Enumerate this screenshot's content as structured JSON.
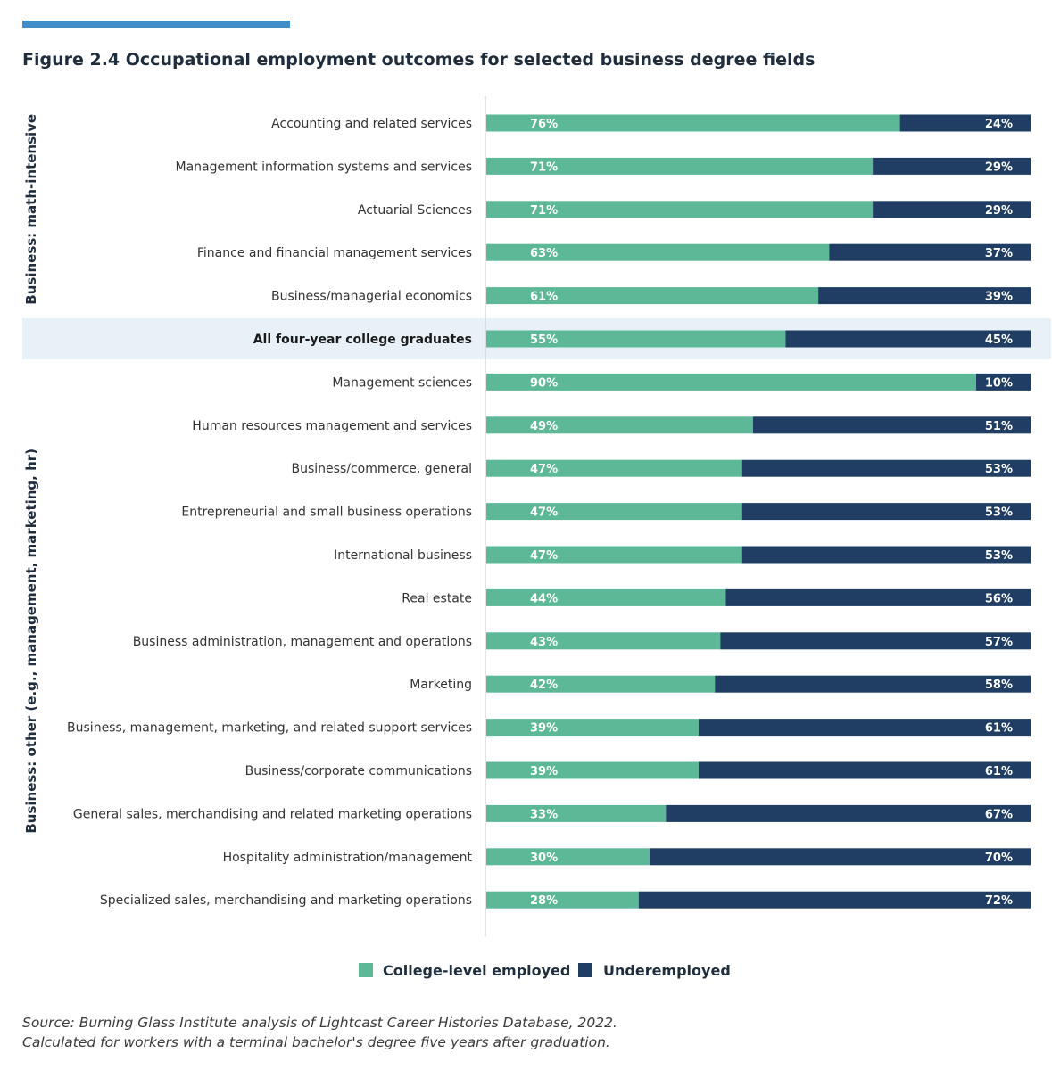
{
  "figure": {
    "title": "Figure 2.4  Occupational employment outcomes for selected business degree fields",
    "source_line1": "Source: Burning Glass Institute analysis of Lightcast Career Histories Database, 2022.",
    "source_line2": "Calculated for workers with a terminal bachelor's degree five years after graduation."
  },
  "colors": {
    "accent": "#3f8ec9",
    "college_level": "#5cb896",
    "underemployed": "#203d63",
    "highlight_band": "#e8f0f8"
  },
  "chart_data": {
    "type": "bar",
    "orientation": "horizontal",
    "stacked": true,
    "normalized_percent": true,
    "title": "Occupational employment outcomes for selected business degree fields",
    "categories": [
      "Accounting and related services",
      "Management information systems and services",
      "Actuarial Sciences",
      "Finance and financial management services",
      "Business/managerial economics",
      "All four-year college graduates",
      "Management sciences",
      "Human resources management and services",
      "Business/commerce, general",
      "Entrepreneurial and small business operations",
      "International business",
      "Real estate",
      "Business administration, management and operations",
      "Marketing",
      "Business, management, marketing, and related support services",
      "Business/corporate communications",
      "General sales, merchandising and related marketing operations",
      "Hospitality administration/management",
      "Specialized sales, merchandising and marketing operations"
    ],
    "series": [
      {
        "name": "College-level employed",
        "values": [
          76,
          71,
          71,
          63,
          61,
          55,
          90,
          49,
          47,
          47,
          47,
          44,
          43,
          42,
          39,
          39,
          33,
          30,
          28
        ]
      },
      {
        "name": "Underemployed",
        "values": [
          24,
          29,
          29,
          37,
          39,
          45,
          10,
          51,
          53,
          53,
          53,
          56,
          57,
          58,
          61,
          61,
          67,
          70,
          72
        ]
      }
    ],
    "highlighted_category": "All four-year college graduates",
    "groups": [
      {
        "label": "Business: math-intensive",
        "first": 0,
        "last": 4
      },
      {
        "label": "Business: other (e.g., management, marketing, hr)",
        "first": 6,
        "last": 18
      }
    ],
    "legend_position": "bottom",
    "xlim": [
      0,
      100
    ]
  }
}
